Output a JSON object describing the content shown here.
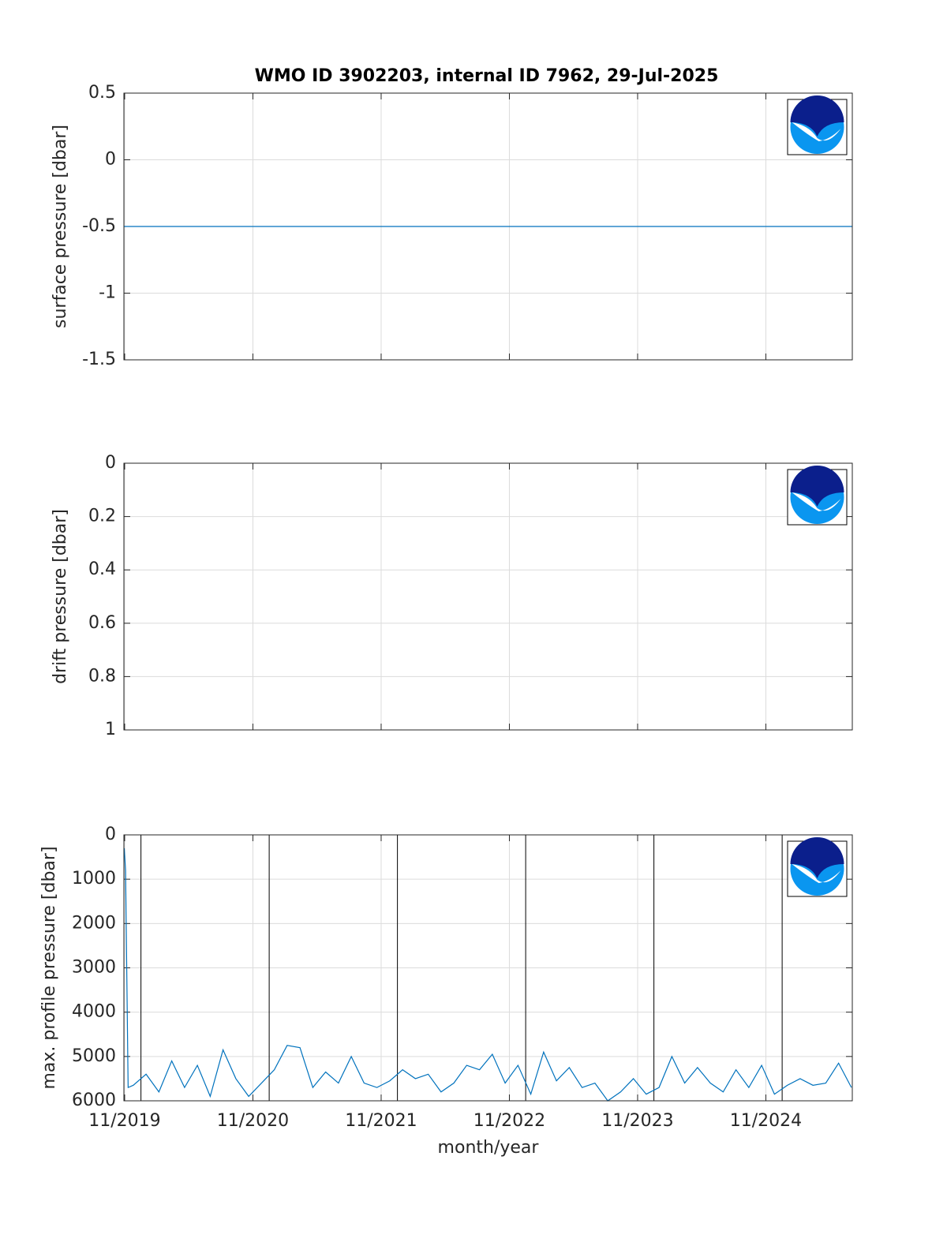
{
  "chart_data": [
    {
      "type": "line",
      "title": "WMO ID 3902203, internal ID 7962, 29-Jul-2025",
      "ylabel": "surface pressure [dbar]",
      "ylim": [
        -1.5,
        0.5
      ],
      "yticks": [
        -1.5,
        -1,
        -0.5,
        0,
        0.5
      ],
      "grid": true,
      "series": [
        {
          "color": "#0072bd",
          "x": [
            2019.827,
            2025.507
          ],
          "values": [
            -0.5,
            -0.5
          ]
        }
      ]
    },
    {
      "type": "line",
      "ylabel": "drift pressure [dbar]",
      "ylim": [
        0,
        1
      ],
      "yticks": [
        0,
        0.2,
        0.4,
        0.6,
        0.8,
        1
      ],
      "y_reversed": true,
      "grid": true
    },
    {
      "type": "line",
      "ylabel": "max. profile pressure [dbar]",
      "xlabel": "month/year",
      "ylim": [
        0,
        6000
      ],
      "yticks": [
        0,
        1000,
        2000,
        3000,
        4000,
        5000,
        6000
      ],
      "y_reversed": true,
      "grid": true,
      "xlim": [
        2019.827,
        2025.507
      ],
      "xticks": [
        {
          "value": 2019.833,
          "label": "11/2019"
        },
        {
          "value": 2020.833,
          "label": "11/2020"
        },
        {
          "value": 2021.833,
          "label": "11/2021"
        },
        {
          "value": 2022.833,
          "label": "11/2022"
        },
        {
          "value": 2023.833,
          "label": "11/2023"
        },
        {
          "value": 2024.833,
          "label": "11/2024"
        }
      ],
      "year_lines": [
        2019.96,
        2020.96,
        2021.96,
        2022.96,
        2023.96,
        2024.96
      ],
      "series": [
        {
          "color": "#0072bd",
          "x": [
            2019.83,
            2019.84,
            2019.86,
            2019.9,
            2020.0,
            2020.1,
            2020.2,
            2020.3,
            2020.4,
            2020.5,
            2020.6,
            2020.7,
            2020.8,
            2020.9,
            2021.0,
            2021.1,
            2021.2,
            2021.3,
            2021.4,
            2021.5,
            2021.6,
            2021.7,
            2021.8,
            2021.9,
            2022.0,
            2022.1,
            2022.2,
            2022.3,
            2022.4,
            2022.5,
            2022.6,
            2022.7,
            2022.8,
            2022.9,
            2023.0,
            2023.1,
            2023.2,
            2023.3,
            2023.4,
            2023.5,
            2023.6,
            2023.7,
            2023.8,
            2023.9,
            2024.0,
            2024.1,
            2024.2,
            2024.3,
            2024.4,
            2024.5,
            2024.6,
            2024.7,
            2024.8,
            2024.9,
            2025.0,
            2025.1,
            2025.2,
            2025.3,
            2025.4,
            2025.5
          ],
          "values": [
            300,
            800,
            5700,
            5650,
            5400,
            5800,
            5100,
            5700,
            5200,
            5900,
            4850,
            5500,
            5900,
            5600,
            5300,
            4750,
            4800,
            5700,
            5350,
            5600,
            5000,
            5600,
            5700,
            5550,
            5300,
            5500,
            5400,
            5800,
            5600,
            5200,
            5300,
            4950,
            5600,
            5200,
            5850,
            4900,
            5550,
            5250,
            5700,
            5600,
            6000,
            5800,
            5500,
            5850,
            5700,
            5000,
            5600,
            5250,
            5600,
            5800,
            5300,
            5700,
            5200,
            5850,
            5650,
            5500,
            5650,
            5600,
            5150,
            5700
          ]
        }
      ]
    }
  ]
}
